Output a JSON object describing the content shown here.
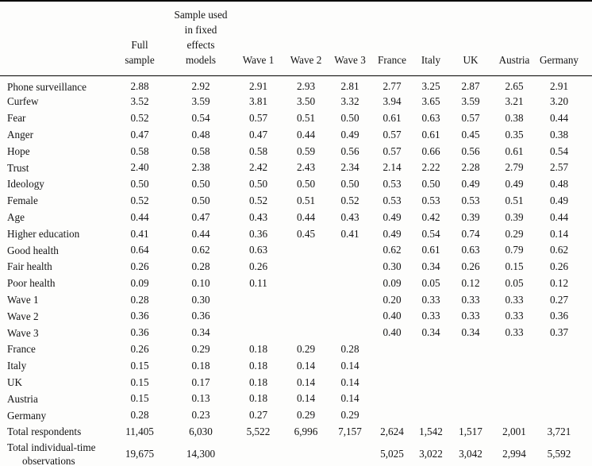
{
  "table": {
    "columns": [
      "",
      "Full\nsample",
      "Sample used\nin fixed\neffects\nmodels",
      "Wave 1",
      "Wave 2",
      "Wave 3",
      "France",
      "Italy",
      "UK",
      "Austria",
      "Germany"
    ],
    "rows": [
      {
        "label": "Phone surveillance",
        "values": [
          "2.88",
          "2.92",
          "2.91",
          "2.93",
          "2.81",
          "2.77",
          "3.25",
          "2.87",
          "2.65",
          "2.91"
        ]
      },
      {
        "label": "Curfew",
        "values": [
          "3.52",
          "3.59",
          "3.81",
          "3.50",
          "3.32",
          "3.94",
          "3.65",
          "3.59",
          "3.21",
          "3.20"
        ]
      },
      {
        "label": "Fear",
        "values": [
          "0.52",
          "0.54",
          "0.57",
          "0.51",
          "0.50",
          "0.61",
          "0.63",
          "0.57",
          "0.38",
          "0.44"
        ]
      },
      {
        "label": "Anger",
        "values": [
          "0.47",
          "0.48",
          "0.47",
          "0.44",
          "0.49",
          "0.57",
          "0.61",
          "0.45",
          "0.35",
          "0.38"
        ]
      },
      {
        "label": "Hope",
        "values": [
          "0.58",
          "0.58",
          "0.58",
          "0.59",
          "0.56",
          "0.57",
          "0.66",
          "0.56",
          "0.61",
          "0.54"
        ]
      },
      {
        "label": "Trust",
        "values": [
          "2.40",
          "2.38",
          "2.42",
          "2.43",
          "2.34",
          "2.14",
          "2.22",
          "2.28",
          "2.79",
          "2.57"
        ]
      },
      {
        "label": "Ideology",
        "values": [
          "0.50",
          "0.50",
          "0.50",
          "0.50",
          "0.50",
          "0.53",
          "0.50",
          "0.49",
          "0.49",
          "0.48"
        ]
      },
      {
        "label": "Female",
        "values": [
          "0.52",
          "0.50",
          "0.52",
          "0.51",
          "0.52",
          "0.53",
          "0.53",
          "0.53",
          "0.51",
          "0.49"
        ]
      },
      {
        "label": "Age",
        "values": [
          "0.44",
          "0.47",
          "0.43",
          "0.44",
          "0.43",
          "0.49",
          "0.42",
          "0.39",
          "0.39",
          "0.44"
        ]
      },
      {
        "label": "Higher education",
        "values": [
          "0.41",
          "0.44",
          "0.36",
          "0.45",
          "0.41",
          "0.49",
          "0.54",
          "0.74",
          "0.29",
          "0.14"
        ]
      },
      {
        "label": "Good health",
        "values": [
          "0.64",
          "0.62",
          "0.63",
          "",
          "",
          "0.62",
          "0.61",
          "0.63",
          "0.79",
          "0.62"
        ]
      },
      {
        "label": "Fair health",
        "values": [
          "0.26",
          "0.28",
          "0.26",
          "",
          "",
          "0.30",
          "0.34",
          "0.26",
          "0.15",
          "0.26"
        ]
      },
      {
        "label": "Poor health",
        "values": [
          "0.09",
          "0.10",
          "0.11",
          "",
          "",
          "0.09",
          "0.05",
          "0.12",
          "0.05",
          "0.12"
        ]
      },
      {
        "label": "Wave 1",
        "values": [
          "0.28",
          "0.30",
          "",
          "",
          "",
          "0.20",
          "0.33",
          "0.33",
          "0.33",
          "0.27"
        ]
      },
      {
        "label": "Wave 2",
        "values": [
          "0.36",
          "0.36",
          "",
          "",
          "",
          "0.40",
          "0.33",
          "0.33",
          "0.33",
          "0.36"
        ]
      },
      {
        "label": "Wave 3",
        "values": [
          "0.36",
          "0.34",
          "",
          "",
          "",
          "0.40",
          "0.34",
          "0.34",
          "0.33",
          "0.37"
        ]
      },
      {
        "label": "France",
        "values": [
          "0.26",
          "0.29",
          "0.18",
          "0.29",
          "0.28",
          "",
          "",
          "",
          "",
          ""
        ]
      },
      {
        "label": "Italy",
        "values": [
          "0.15",
          "0.18",
          "0.18",
          "0.14",
          "0.14",
          "",
          "",
          "",
          "",
          ""
        ]
      },
      {
        "label": "UK",
        "values": [
          "0.15",
          "0.17",
          "0.18",
          "0.14",
          "0.14",
          "",
          "",
          "",
          "",
          ""
        ]
      },
      {
        "label": "Austria",
        "values": [
          "0.15",
          "0.13",
          "0.18",
          "0.14",
          "0.14",
          "",
          "",
          "",
          "",
          ""
        ]
      },
      {
        "label": "Germany",
        "values": [
          "0.28",
          "0.23",
          "0.27",
          "0.29",
          "0.29",
          "",
          "",
          "",
          "",
          ""
        ]
      },
      {
        "label": "Total respondents",
        "values": [
          "11,405",
          "6,030",
          "5,522",
          "6,996",
          "7,157",
          "2,624",
          "1,542",
          "1,517",
          "2,001",
          "3,721"
        ]
      },
      {
        "label": "Total individual-time observations",
        "values": [
          "19,675",
          "14,300",
          "",
          "",
          "",
          "5,025",
          "3,022",
          "3,042",
          "2,994",
          "5,592"
        ]
      }
    ]
  }
}
